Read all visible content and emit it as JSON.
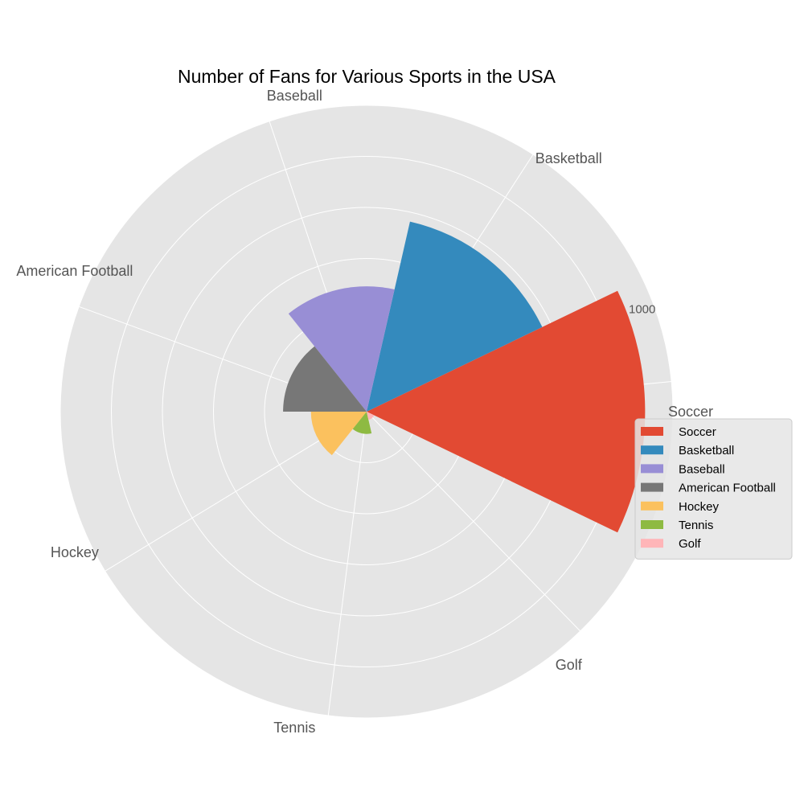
{
  "chart_data": {
    "type": "polar-bar",
    "title": "Number of Fans for Various Sports in the USA",
    "categories": [
      "Soccer",
      "Basketball",
      "Baseball",
      "American Football",
      "Hockey",
      "Tennis",
      "Golf"
    ],
    "values": [
      1000,
      700,
      450,
      300,
      200,
      80,
      30
    ],
    "colors": [
      "#E24A33",
      "#348ABD",
      "#988ED5",
      "#777777",
      "#FBC15E",
      "#8EBA42",
      "#FFB5B8"
    ],
    "rlim": [
      0,
      1100
    ],
    "r_tick_labels": [
      "1000"
    ],
    "r_tick_values": [
      1000
    ],
    "grid": true,
    "legend": {
      "position": "right",
      "entries": [
        "Soccer",
        "Basketball",
        "Baseball",
        "American Football",
        "Hockey",
        "Tennis",
        "Golf"
      ]
    }
  }
}
